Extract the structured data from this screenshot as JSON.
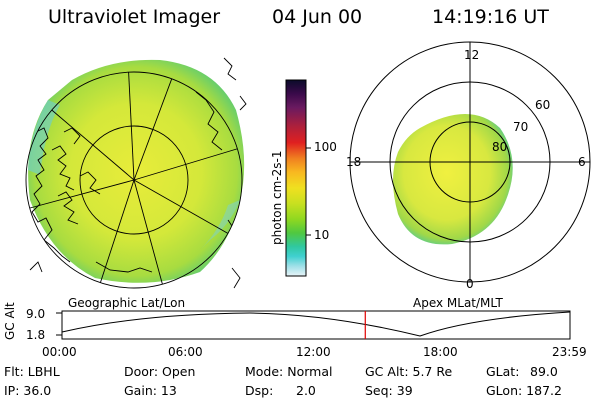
{
  "header": {
    "title": "Ultraviolet Imager",
    "date": "04 Jun 00",
    "time": "14:19:16 UT"
  },
  "left_panel": {
    "caption": "Geographic Lat/Lon"
  },
  "right_panel": {
    "caption": "Apex MLat/MLT",
    "mlt_labels": [
      "12",
      "18",
      "6",
      "0"
    ],
    "lat_labels": [
      "60",
      "70",
      "80"
    ]
  },
  "colorbar": {
    "unit": "photon cm-2s-1",
    "ticks": [
      "100",
      "10"
    ],
    "colors": [
      "#0b0b2a",
      "#3a0a4a",
      "#6a1a60",
      "#b0203a",
      "#e02020",
      "#f08020",
      "#f8b820",
      "#f0e020",
      "#c8e020",
      "#90d820",
      "#50c840",
      "#30c8a0",
      "#40d0d0",
      "#a0e0e8",
      "#e8f4f8"
    ]
  },
  "altitude_plot": {
    "ylabel": "GC Alt",
    "ymax_label": "9.0",
    "ymin_label": "1.8",
    "time_labels": [
      "00:00",
      "06:00",
      "12:00",
      "18:00",
      "23:59"
    ],
    "current_time_fraction": 0.597
  },
  "footer": {
    "filter_label": "Flt: LBHL",
    "ip_label": "IP: 36.0",
    "door_label": "Door: Open",
    "gain_label": "Gain: 13",
    "mode_label": "Mode: Normal",
    "dsp_label": "Dsp:",
    "dsp_value": "2.0",
    "gc_alt_label": "GC Alt: 5.7 Re",
    "seq_label": "Seq: 39",
    "glat_label": "GLat:",
    "glat_value": "89.0",
    "glon_label": "GLon: 187.2"
  }
}
